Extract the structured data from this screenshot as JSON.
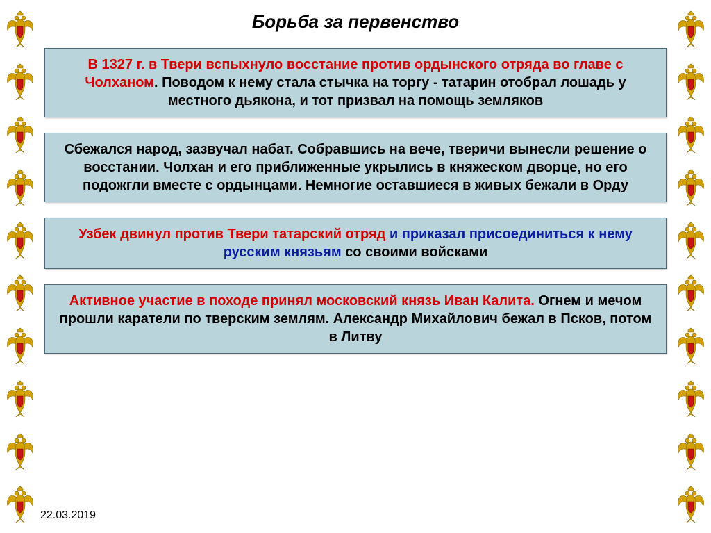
{
  "title": "Борьба за первенство",
  "date": "22.03.2019",
  "emblem": {
    "gold": "#d4a200",
    "red": "#c81414",
    "count_per_side": 10
  },
  "boxes": [
    {
      "segments": [
        {
          "style": "red",
          "text": "В 1327 г. в Твери вспыхнуло восстание против ордынского отряда во главе с Чолханом"
        },
        {
          "style": "blk",
          "text": ". Поводом к нему стала стычка на торгу - татарин отобрал лошадь у местного дьякона, и тот призвал на помощь земляков"
        }
      ]
    },
    {
      "segments": [
        {
          "style": "blk",
          "text": "Сбежался народ, зазвучал набат. Собравшись на вече, тверичи вынесли решение о восстании. Чолхан и его приближенные укрылись в княжеском дворце, но его подожгли вместе с ордынцами. Немногие оставшиеся в живых бежали в Орду"
        }
      ]
    },
    {
      "segments": [
        {
          "style": "red",
          "text": "Узбек двинул против Твери татарский отряд "
        },
        {
          "style": "blue",
          "text": "и приказал присоединиться к нему русским князьям "
        },
        {
          "style": "blk",
          "text": "со своими войсками"
        }
      ]
    },
    {
      "segments": [
        {
          "style": "red",
          "text": "Активное участие в походе принял московский князь Иван Калита. "
        },
        {
          "style": "blk",
          "text": "Огнем и мечом прошли каратели по тверским землям. Александр Михайлович бежал в Псков, потом в Литву"
        }
      ]
    }
  ],
  "colors": {
    "box_bg": "#b9d4da",
    "box_border": "#4a6a78",
    "red_text": "#d20000",
    "blue_text": "#0b1ea0",
    "slide_bg": "#ffffff"
  }
}
